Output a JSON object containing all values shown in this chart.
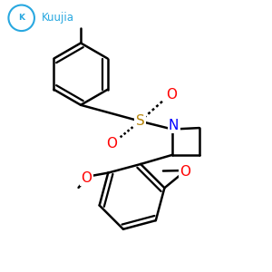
{
  "background_color": "#ffffff",
  "logo_color": "#29a8e0",
  "atom_colors": {
    "S": "#b8860b",
    "N": "#0000ff",
    "O": "#ff0000",
    "C": "#000000"
  },
  "bond_color": "#000000",
  "bond_width": 1.8
}
